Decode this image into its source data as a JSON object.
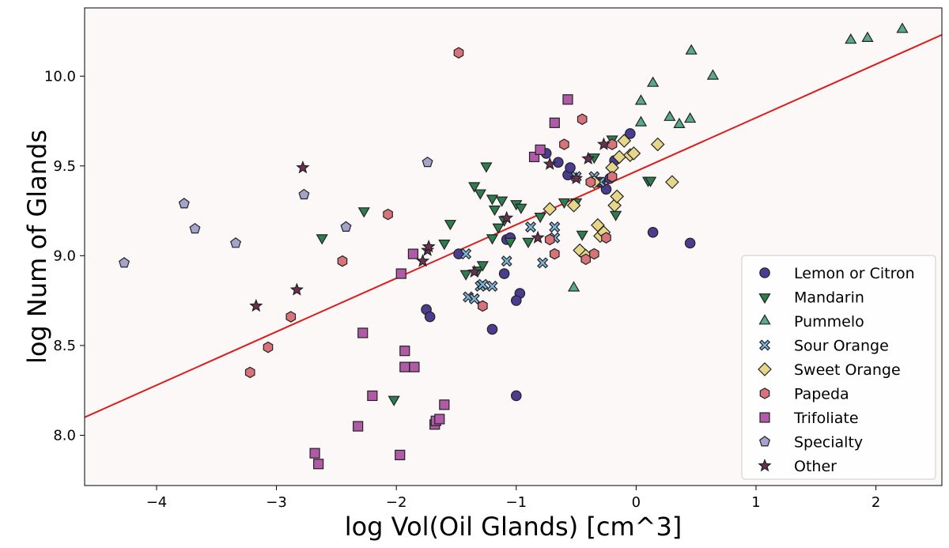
{
  "chart_data": {
    "type": "scatter",
    "title": "",
    "xlabel": "log Vol(Oil Glands) [cm^3]",
    "ylabel": "log Num of Glands",
    "xlim": [
      -4.6,
      2.55
    ],
    "ylim": [
      7.72,
      10.38
    ],
    "x_ticks": [
      -4,
      -3,
      -2,
      -1,
      0,
      1,
      2
    ],
    "y_ticks": [
      8.0,
      8.5,
      9.0,
      9.5,
      10.0
    ],
    "x_tick_labels": [
      "−4",
      "−3",
      "−2",
      "−1",
      "0",
      "1",
      "2"
    ],
    "y_tick_labels": [
      "8.0",
      "8.5",
      "9.0",
      "9.5",
      "10.0"
    ],
    "grid": false,
    "background": "#fcf8f8",
    "legend_position": "lower-right",
    "fit_line": {
      "color": "#dd1c1c",
      "x": [
        -4.6,
        2.55
      ],
      "y": [
        8.1,
        10.23
      ]
    },
    "series": [
      {
        "name": "Lemon or Citron",
        "marker": "circle",
        "color": "#4a3d8f",
        "x": [
          -1.48,
          -1.75,
          -1.72,
          -1.2,
          -1.08,
          -1.1,
          -1.05,
          -0.97,
          -1,
          -1.0,
          -0.75,
          -0.65,
          -0.57,
          -0.55,
          -0.3,
          -0.25,
          -0.22,
          -0.18,
          -0.05,
          0.14,
          0.45
        ],
        "y": [
          9.01,
          8.7,
          8.66,
          8.59,
          9.09,
          8.9,
          9.1,
          8.79,
          8.75,
          8.22,
          9.57,
          9.52,
          9.45,
          9.49,
          9.41,
          9.37,
          9.43,
          9.53,
          9.68,
          9.13,
          9.07
        ]
      },
      {
        "name": "Mandarin",
        "marker": "triangle-down",
        "color": "#2e7d4f",
        "x": [
          -2.62,
          -2.27,
          -2.02,
          -1.6,
          -1.55,
          -1.42,
          -1.35,
          -1.3,
          -1.32,
          -1.28,
          -1.25,
          -1.2,
          -1.18,
          -1.15,
          -1.1,
          -1.2,
          -1.12,
          -1.05,
          -1.0,
          -0.96,
          -0.9,
          -0.8,
          -0.6,
          -0.5,
          -0.45,
          -0.35,
          -0.2,
          -0.17,
          0.1,
          0.12
        ],
        "y": [
          9.1,
          9.25,
          8.2,
          9.07,
          9.18,
          8.9,
          9.39,
          9.35,
          8.92,
          8.95,
          9.5,
          9.1,
          9.26,
          9.16,
          9.2,
          9.32,
          9.31,
          9.08,
          9.29,
          9.27,
          9.08,
          9.22,
          9.3,
          9.3,
          9.12,
          9.55,
          9.65,
          9.23,
          9.42,
          9.42
        ]
      },
      {
        "name": "Pummelo",
        "marker": "triangle-up",
        "color": "#5aa88f",
        "x": [
          -0.52,
          0.04,
          0.04,
          0.14,
          0.28,
          0.36,
          0.45,
          0.46,
          0.64,
          1.79,
          1.93,
          2.22
        ],
        "y": [
          8.82,
          9.74,
          9.86,
          9.96,
          9.77,
          9.73,
          9.76,
          10.14,
          10.0,
          10.2,
          10.21,
          10.26
        ]
      },
      {
        "name": "Sour Orange",
        "marker": "x",
        "color": "#7eb6df",
        "x": [
          -1.42,
          -1.4,
          -1.35,
          -1.3,
          -1.28,
          -1.2,
          -1.08,
          -0.88,
          -0.78,
          -0.68,
          -0.68,
          -0.5,
          -0.35,
          -0.3
        ],
        "y": [
          9.01,
          8.77,
          8.76,
          8.83,
          8.84,
          8.83,
          8.97,
          9.16,
          8.96,
          9.1,
          9.16,
          9.44,
          9.44,
          9.41
        ]
      },
      {
        "name": "Sweet Orange",
        "marker": "diamond",
        "color": "#e6d68a",
        "x": [
          -0.72,
          -0.52,
          -0.47,
          -0.42,
          -0.35,
          -0.32,
          -0.3,
          -0.27,
          -0.2,
          -0.18,
          -0.16,
          -0.14,
          -0.1,
          -0.05,
          -0.02,
          0.18,
          0.3
        ],
        "y": [
          9.26,
          9.28,
          9.03,
          9.0,
          9.41,
          9.17,
          9.11,
          9.13,
          9.49,
          9.28,
          9.33,
          9.55,
          9.64,
          9.56,
          9.57,
          9.62,
          9.41
        ]
      },
      {
        "name": "Papeda",
        "marker": "hexagon",
        "color": "#d9737a",
        "x": [
          -3.22,
          -3.07,
          -2.88,
          -2.45,
          -2.07,
          -1.48,
          -1.28,
          -0.72,
          -0.68,
          -0.6,
          -0.45,
          -0.42,
          -0.38,
          -0.35,
          -0.25,
          -0.2,
          -0.2
        ],
        "y": [
          8.35,
          8.49,
          8.66,
          8.97,
          9.23,
          10.13,
          8.72,
          9.09,
          9.01,
          9.62,
          9.76,
          8.98,
          9.41,
          9.01,
          9.1,
          9.62,
          9.44
        ]
      },
      {
        "name": "Trifoliate",
        "marker": "square",
        "color": "#b15aa8",
        "x": [
          -2.68,
          -2.65,
          -2.32,
          -2.28,
          -2.2,
          -1.97,
          -1.96,
          -1.93,
          -1.93,
          -1.85,
          -1.86,
          -1.68,
          -1.67,
          -1.64,
          -1.6,
          -0.85,
          -0.8,
          -0.68,
          -0.57
        ],
        "y": [
          7.9,
          7.84,
          8.05,
          8.57,
          8.22,
          7.89,
          8.9,
          8.38,
          8.47,
          8.38,
          9.01,
          8.06,
          8.08,
          8.09,
          8.17,
          9.55,
          9.59,
          9.74,
          9.87
        ],
        "extra": []
      },
      {
        "name": "Specialty",
        "marker": "pentagon",
        "color": "#a3a3cc",
        "x": [
          -4.27,
          -3.77,
          -3.68,
          -3.34,
          -2.77,
          -2.42,
          -1.74
        ],
        "y": [
          8.96,
          9.29,
          9.15,
          9.07,
          9.34,
          9.16,
          9.52
        ]
      },
      {
        "name": "Other",
        "marker": "star",
        "color": "#6b2f4f",
        "x": [
          -3.17,
          -2.83,
          -2.78,
          -1.78,
          -1.74,
          -1.73,
          -1.35,
          -1.08,
          -0.82,
          -0.72,
          -0.5,
          -0.4,
          -0.27
        ],
        "y": [
          8.72,
          8.81,
          9.49,
          8.97,
          9.03,
          9.05,
          8.91,
          9.21,
          9.1,
          9.51,
          9.43,
          9.54,
          9.62
        ]
      }
    ]
  }
}
